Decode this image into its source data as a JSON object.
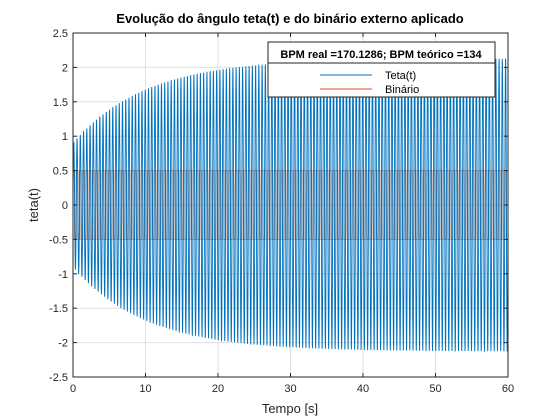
{
  "chart_data": {
    "type": "line",
    "title": "Evolução do ângulo teta(t) e do binário externo aplicado",
    "xlabel": "Tempo [s]",
    "ylabel": "teta(t)",
    "xlim": [
      0,
      60
    ],
    "ylim": [
      -2.5,
      2.5
    ],
    "xticks": [
      0,
      10,
      20,
      30,
      40,
      50,
      60
    ],
    "yticks": [
      -2.5,
      -2,
      -1.5,
      -1,
      -0.5,
      0,
      0.5,
      1,
      1.5,
      2,
      2.5
    ],
    "xtick_labels": [
      "0",
      "10",
      "20",
      "30",
      "40",
      "50",
      "60"
    ],
    "ytick_labels": [
      "-2.5",
      "-2",
      "-1.5",
      "-1",
      "-0.5",
      "0",
      "0.5",
      "1",
      "1.5",
      "2",
      "2.5"
    ],
    "grid": true,
    "legend_title": "BPM real =170.1286; BPM teórico =134",
    "legend_position": "top-right",
    "series": [
      {
        "name": "Teta(t)",
        "color": "#0072BD",
        "kind": "damped-oscillation",
        "steady_amplitude": 2.13,
        "initial_amplitude": 0.9,
        "time_constant": 10,
        "frequency_hz": 2.2333
      },
      {
        "name": "Binário",
        "color": "#D95319",
        "kind": "square-wave",
        "amplitude": 0.5,
        "frequency_hz": 2.2333
      }
    ]
  }
}
